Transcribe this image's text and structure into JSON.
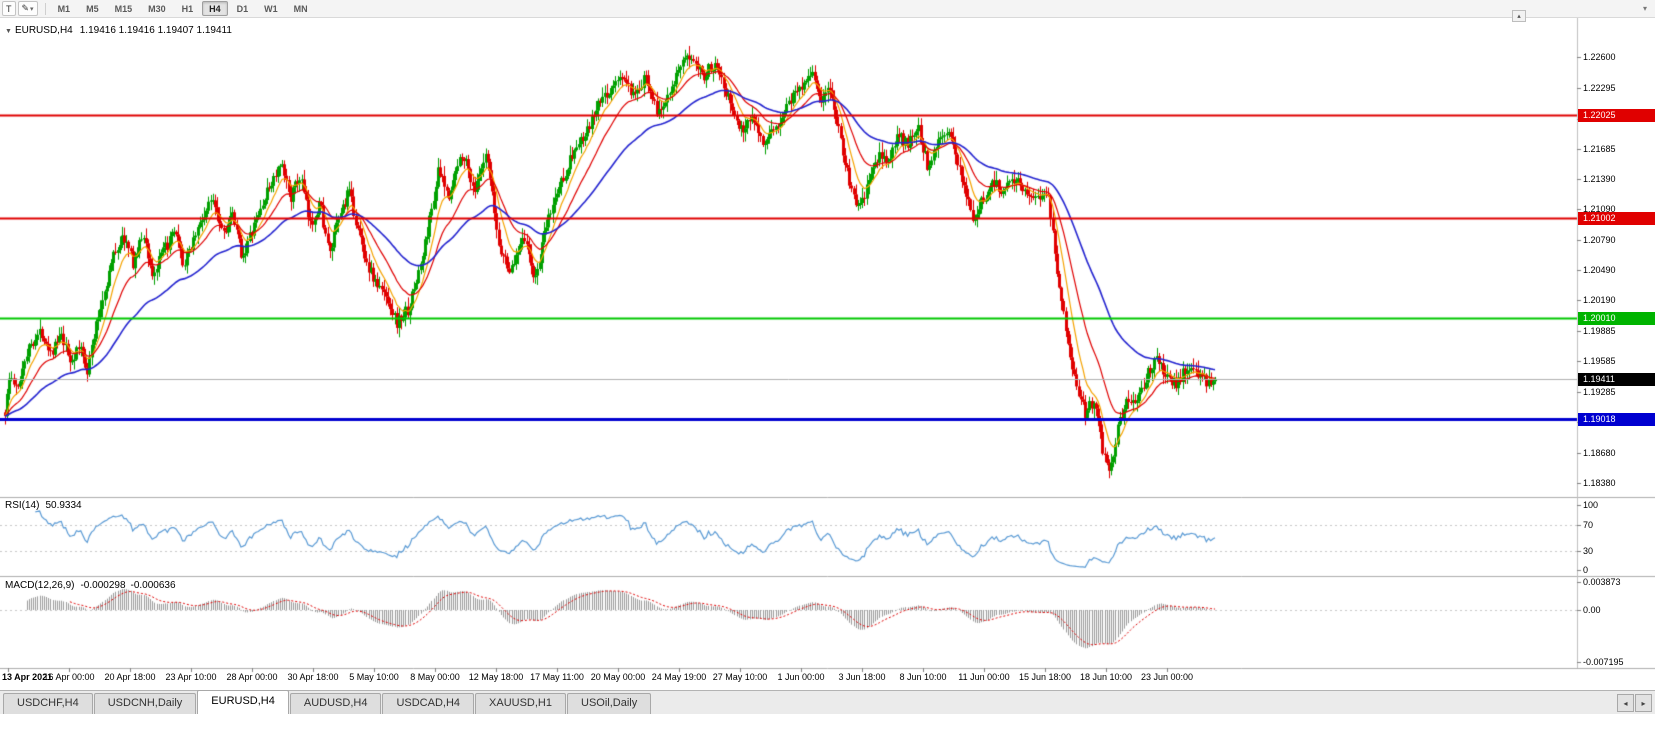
{
  "toolbar": {
    "cursor_label": "T",
    "draw_icon": "✎",
    "caret_icon": "▾",
    "panel_toggle_icon": "▴",
    "overflow_icon": "▾",
    "timeframes": [
      "M1",
      "M5",
      "M15",
      "M30",
      "H1",
      "H4",
      "D1",
      "W1",
      "MN"
    ],
    "active_timeframe": "H4"
  },
  "chart": {
    "collapse_icon": "▼",
    "symbol_period": "EURUSD,H4",
    "ohlc_text": "1.19416 1.19416 1.19407 1.19411",
    "y_axis_labels": [
      "1.22600",
      "1.22295",
      "1.21990",
      "1.21685",
      "1.21390",
      "1.21090",
      "1.20790",
      "1.20490",
      "1.20190",
      "1.19885",
      "1.19585",
      "1.19285",
      "1.18985",
      "1.18680",
      "1.18380"
    ],
    "axis_badges": [
      {
        "label": "1.22025",
        "price": 1.22025,
        "color": "#e00000"
      },
      {
        "label": "1.21002",
        "price": 1.21002,
        "color": "#e00000"
      },
      {
        "label": "1.20010",
        "price": 1.2001,
        "color": "#00b400"
      },
      {
        "label": "1.19411",
        "price": 1.19411,
        "color": "#000000"
      },
      {
        "label": "1.19018",
        "price": 1.19018,
        "color": "#0000d0"
      }
    ],
    "x_axis_labels": [
      "13 Apr 2021",
      "16 Apr 00:00",
      "20 Apr 18:00",
      "23 Apr 10:00",
      "28 Apr 00:00",
      "30 Apr 18:00",
      "5 May 10:00",
      "8 May 00:00",
      "12 May 18:00",
      "17 May 11:00",
      "20 May 00:00",
      "24 May 19:00",
      "27 May 10:00",
      "1 Jun 00:00",
      "3 Jun 18:00",
      "8 Jun 10:00",
      "11 Jun 00:00",
      "15 Jun 18:00",
      "18 Jun 10:00",
      "23 Jun 00:00"
    ]
  },
  "rsi": {
    "label": "RSI(14)",
    "value": "50.9334",
    "axis_labels": [
      "100",
      "70",
      "30",
      "0"
    ]
  },
  "macd": {
    "label": "MACD(12,26,9)",
    "value_main": "-0.000298",
    "value_signal": "-0.000636",
    "axis_labels": [
      "0.003873",
      "0.00",
      "-0.007195"
    ]
  },
  "tab_bar": {
    "tabs": [
      "USDCHF,H4",
      "USDCNH,Daily",
      "EURUSD,H4",
      "AUDUSD,H4",
      "USDCAD,H4",
      "XAUUSD,H1",
      "USOil,Daily"
    ],
    "active_index": 2,
    "scroll_left_icon": "◂",
    "scroll_right_icon": "▸"
  },
  "chart_data": {
    "type": "candlestick",
    "symbol": "EURUSD",
    "timeframe": "H4",
    "current_price": 1.19411,
    "y_range": [
      1.1838,
      1.226
    ],
    "candles_count": 560,
    "noise_seed": 1337,
    "up_color": "#00a000",
    "down_color": "#e00000",
    "current_price_line_color": "#b0b0b0",
    "moving_averages": [
      {
        "name": "fast",
        "period": 9,
        "color": "#f5a300"
      },
      {
        "name": "medium",
        "period": 21,
        "color": "#e00000"
      },
      {
        "name": "slow",
        "period": 55,
        "color": "#2424d0"
      }
    ],
    "horizontal_lines": [
      {
        "price": 1.22025,
        "color": "#e00000",
        "width": 2
      },
      {
        "price": 1.21002,
        "color": "#e00000",
        "width": 2
      },
      {
        "price": 1.2001,
        "color": "#00c800",
        "width": 2
      },
      {
        "price": 1.19018,
        "color": "#0000d0",
        "width": 3
      }
    ],
    "rsi_indicator": {
      "period": 14,
      "color": "#5b9bd5",
      "levels": [
        30,
        70
      ],
      "range": [
        0,
        100
      ],
      "last_value": 50.9334
    },
    "macd_indicator": {
      "fast": 12,
      "slow": 26,
      "signal": 9,
      "histogram_color": "#9a9a9a",
      "signal_color": "#e00000",
      "range": [
        -0.007195,
        0.003873
      ],
      "last_values": [
        -0.000298,
        -0.000636
      ]
    },
    "price_path": [
      [
        0.0,
        1.1908
      ],
      [
        0.004,
        1.1945
      ],
      [
        0.01,
        1.1928
      ],
      [
        0.016,
        1.1962
      ],
      [
        0.022,
        1.1978
      ],
      [
        0.03,
        1.1988
      ],
      [
        0.038,
        1.1968
      ],
      [
        0.046,
        1.1983
      ],
      [
        0.054,
        1.1958
      ],
      [
        0.062,
        1.1973
      ],
      [
        0.068,
        1.195
      ],
      [
        0.074,
        1.1988
      ],
      [
        0.082,
        1.2028
      ],
      [
        0.09,
        1.2066
      ],
      [
        0.098,
        1.2082
      ],
      [
        0.106,
        1.2055
      ],
      [
        0.114,
        1.2086
      ],
      [
        0.122,
        1.2042
      ],
      [
        0.13,
        1.2066
      ],
      [
        0.14,
        1.2086
      ],
      [
        0.148,
        1.2052
      ],
      [
        0.156,
        1.2082
      ],
      [
        0.164,
        1.2102
      ],
      [
        0.172,
        1.2122
      ],
      [
        0.18,
        1.2087
      ],
      [
        0.188,
        1.2102
      ],
      [
        0.196,
        1.2062
      ],
      [
        0.204,
        1.2087
      ],
      [
        0.212,
        1.2112
      ],
      [
        0.22,
        1.2136
      ],
      [
        0.228,
        1.2152
      ],
      [
        0.236,
        1.2122
      ],
      [
        0.244,
        1.2142
      ],
      [
        0.252,
        1.2092
      ],
      [
        0.26,
        1.2117
      ],
      [
        0.268,
        1.2062
      ],
      [
        0.276,
        1.2102
      ],
      [
        0.284,
        1.2127
      ],
      [
        0.292,
        1.2087
      ],
      [
        0.3,
        1.2052
      ],
      [
        0.308,
        1.2032
      ],
      [
        0.316,
        1.2022
      ],
      [
        0.324,
        1.1996
      ],
      [
        0.334,
        1.2012
      ],
      [
        0.345,
        1.2062
      ],
      [
        0.358,
        1.2147
      ],
      [
        0.366,
        1.2122
      ],
      [
        0.378,
        1.2167
      ],
      [
        0.388,
        1.2127
      ],
      [
        0.398,
        1.2162
      ],
      [
        0.408,
        1.2072
      ],
      [
        0.418,
        1.2047
      ],
      [
        0.428,
        1.2087
      ],
      [
        0.438,
        1.2037
      ],
      [
        0.448,
        1.2097
      ],
      [
        0.458,
        1.2132
      ],
      [
        0.47,
        1.2167
      ],
      [
        0.48,
        1.2182
      ],
      [
        0.49,
        1.2212
      ],
      [
        0.5,
        1.2227
      ],
      [
        0.51,
        1.2242
      ],
      [
        0.52,
        1.2217
      ],
      [
        0.53,
        1.2242
      ],
      [
        0.54,
        1.2202
      ],
      [
        0.55,
        1.2232
      ],
      [
        0.56,
        1.2252
      ],
      [
        0.568,
        1.2263
      ],
      [
        0.578,
        1.2242
      ],
      [
        0.588,
        1.2257
      ],
      [
        0.598,
        1.2217
      ],
      [
        0.608,
        1.2187
      ],
      [
        0.618,
        1.2202
      ],
      [
        0.628,
        1.2172
      ],
      [
        0.638,
        1.2192
      ],
      [
        0.648,
        1.2217
      ],
      [
        0.658,
        1.2232
      ],
      [
        0.666,
        1.2248
      ],
      [
        0.674,
        1.2217
      ],
      [
        0.682,
        1.2227
      ],
      [
        0.69,
        1.2182
      ],
      [
        0.698,
        1.2132
      ],
      [
        0.706,
        1.2108
      ],
      [
        0.714,
        1.2137
      ],
      [
        0.722,
        1.2162
      ],
      [
        0.73,
        1.2157
      ],
      [
        0.738,
        1.2182
      ],
      [
        0.746,
        1.2172
      ],
      [
        0.754,
        1.2194
      ],
      [
        0.762,
        1.2152
      ],
      [
        0.77,
        1.2177
      ],
      [
        0.778,
        1.2187
      ],
      [
        0.786,
        1.2162
      ],
      [
        0.794,
        1.2127
      ],
      [
        0.8,
        1.2098
      ],
      [
        0.808,
        1.2118
      ],
      [
        0.816,
        1.2137
      ],
      [
        0.824,
        1.2128
      ],
      [
        0.832,
        1.2142
      ],
      [
        0.84,
        1.2132
      ],
      [
        0.85,
        1.2122
      ],
      [
        0.862,
        1.2128
      ],
      [
        0.87,
        1.2042
      ],
      [
        0.878,
        1.1977
      ],
      [
        0.886,
        1.1932
      ],
      [
        0.893,
        1.1907
      ],
      [
        0.9,
        1.1922
      ],
      [
        0.906,
        1.1877
      ],
      [
        0.913,
        1.1848
      ],
      [
        0.92,
        1.1897
      ],
      [
        0.928,
        1.1922
      ],
      [
        0.936,
        1.1917
      ],
      [
        0.944,
        1.1947
      ],
      [
        0.952,
        1.1962
      ],
      [
        0.96,
        1.1942
      ],
      [
        0.968,
        1.1937
      ],
      [
        0.976,
        1.1952
      ],
      [
        0.984,
        1.1947
      ],
      [
        0.992,
        1.1939
      ],
      [
        1.0,
        1.1941
      ]
    ]
  }
}
